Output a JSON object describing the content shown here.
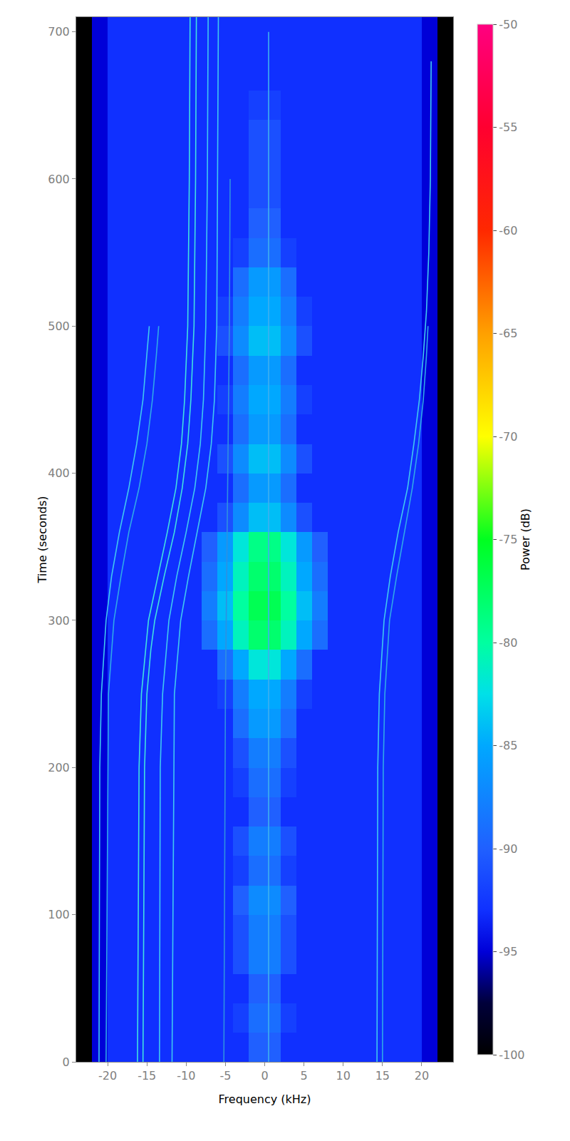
{
  "chart_data": {
    "type": "heatmap",
    "x_label": "Frequency (kHz)",
    "y_label": "Time (seconds)",
    "xlim": [
      -24,
      24
    ],
    "xticks": [
      -20,
      -15,
      -10,
      -5,
      0,
      5,
      10,
      15,
      20
    ],
    "ylim": [
      0,
      710
    ],
    "yticks": [
      0,
      100,
      200,
      300,
      400,
      500,
      600,
      700
    ],
    "grid": true,
    "colorbar": {
      "title": "Power (dB)",
      "range": [
        -100,
        -50
      ],
      "ticks": [
        -100,
        -95,
        -90,
        -85,
        -80,
        -75,
        -70,
        -65,
        -60,
        -55,
        -50
      ]
    },
    "x": [
      -23,
      -21,
      -19,
      -17,
      -15,
      -13,
      -11,
      -9,
      -7,
      -5,
      -3,
      -1,
      1,
      3,
      5,
      7,
      9,
      11,
      13,
      15,
      17,
      19,
      21,
      23
    ],
    "y": [
      10,
      30,
      50,
      70,
      90,
      110,
      130,
      150,
      170,
      190,
      210,
      230,
      250,
      270,
      290,
      310,
      330,
      350,
      370,
      390,
      410,
      430,
      450,
      470,
      490,
      510,
      530,
      550,
      570,
      590,
      610,
      630,
      650,
      670,
      690,
      710
    ],
    "z": [
      [
        -100,
        -95,
        -93,
        -93,
        -93,
        -93,
        -93,
        -93,
        -93,
        -93,
        -93,
        -90,
        -90,
        -93,
        -93,
        -93,
        -93,
        -93,
        -93,
        -93,
        -93,
        -93,
        -95,
        -100
      ],
      [
        -100,
        -95,
        -93,
        -93,
        -93,
        -93,
        -93,
        -93,
        -93,
        -93,
        -92,
        -89,
        -89,
        -92,
        -93,
        -93,
        -93,
        -93,
        -93,
        -93,
        -93,
        -93,
        -95,
        -100
      ],
      [
        -100,
        -95,
        -93,
        -93,
        -93,
        -93,
        -93,
        -93,
        -93,
        -93,
        -93,
        -90,
        -90,
        -93,
        -93,
        -93,
        -93,
        -93,
        -93,
        -93,
        -93,
        -93,
        -95,
        -100
      ],
      [
        -100,
        -95,
        -93,
        -93,
        -93,
        -93,
        -93,
        -93,
        -93,
        -93,
        -91,
        -88,
        -88,
        -91,
        -93,
        -93,
        -93,
        -93,
        -93,
        -93,
        -93,
        -93,
        -95,
        -100
      ],
      [
        -100,
        -95,
        -93,
        -93,
        -93,
        -93,
        -93,
        -93,
        -93,
        -93,
        -91,
        -88,
        -88,
        -91,
        -93,
        -93,
        -93,
        -93,
        -93,
        -93,
        -93,
        -93,
        -95,
        -100
      ],
      [
        -100,
        -95,
        -93,
        -93,
        -93,
        -93,
        -93,
        -93,
        -93,
        -93,
        -90,
        -87,
        -87,
        -90,
        -93,
        -93,
        -93,
        -93,
        -93,
        -93,
        -93,
        -93,
        -95,
        -100
      ],
      [
        -100,
        -95,
        -93,
        -93,
        -93,
        -93,
        -93,
        -93,
        -93,
        -93,
        -92,
        -89,
        -89,
        -92,
        -93,
        -93,
        -93,
        -93,
        -93,
        -93,
        -93,
        -93,
        -95,
        -100
      ],
      [
        -100,
        -95,
        -93,
        -93,
        -93,
        -93,
        -93,
        -93,
        -93,
        -93,
        -91,
        -88,
        -88,
        -91,
        -93,
        -93,
        -93,
        -93,
        -93,
        -93,
        -93,
        -93,
        -95,
        -100
      ],
      [
        -100,
        -95,
        -93,
        -93,
        -93,
        -93,
        -93,
        -93,
        -93,
        -93,
        -93,
        -90,
        -90,
        -93,
        -93,
        -93,
        -93,
        -93,
        -93,
        -93,
        -93,
        -93,
        -95,
        -100
      ],
      [
        -100,
        -95,
        -93,
        -93,
        -93,
        -93,
        -93,
        -93,
        -93,
        -93,
        -92,
        -89,
        -89,
        -92,
        -93,
        -93,
        -93,
        -93,
        -93,
        -93,
        -93,
        -93,
        -95,
        -100
      ],
      [
        -100,
        -95,
        -93,
        -93,
        -93,
        -93,
        -93,
        -93,
        -93,
        -93,
        -91,
        -88,
        -88,
        -91,
        -93,
        -93,
        -93,
        -93,
        -93,
        -93,
        -93,
        -93,
        -95,
        -100
      ],
      [
        -100,
        -95,
        -93,
        -93,
        -93,
        -93,
        -93,
        -93,
        -93,
        -93,
        -89,
        -86,
        -86,
        -89,
        -93,
        -93,
        -93,
        -93,
        -93,
        -93,
        -93,
        -93,
        -95,
        -100
      ],
      [
        -100,
        -95,
        -93,
        -93,
        -93,
        -93,
        -93,
        -93,
        -93,
        -92,
        -88,
        -85,
        -85,
        -88,
        -92,
        -93,
        -93,
        -93,
        -93,
        -93,
        -93,
        -93,
        -95,
        -100
      ],
      [
        -100,
        -95,
        -93,
        -93,
        -93,
        -93,
        -93,
        -93,
        -93,
        -89,
        -85,
        -82,
        -82,
        -85,
        -89,
        -93,
        -93,
        -93,
        -93,
        -93,
        -93,
        -93,
        -95,
        -100
      ],
      [
        -100,
        -95,
        -93,
        -93,
        -93,
        -93,
        -93,
        -93,
        -89,
        -85,
        -81,
        -78,
        -78,
        -81,
        -85,
        -89,
        -93,
        -93,
        -93,
        -93,
        -93,
        -93,
        -95,
        -100
      ],
      [
        -100,
        -95,
        -93,
        -93,
        -93,
        -93,
        -93,
        -93,
        -88,
        -84,
        -80,
        -77,
        -77,
        -80,
        -84,
        -88,
        -93,
        -93,
        -93,
        -93,
        -93,
        -93,
        -95,
        -100
      ],
      [
        -100,
        -95,
        -93,
        -93,
        -93,
        -93,
        -93,
        -93,
        -89,
        -85,
        -81,
        -78,
        -78,
        -81,
        -85,
        -89,
        -93,
        -93,
        -93,
        -93,
        -93,
        -93,
        -95,
        -100
      ],
      [
        -100,
        -95,
        -93,
        -93,
        -93,
        -93,
        -93,
        -93,
        -90,
        -86,
        -82,
        -79,
        -79,
        -82,
        -86,
        -90,
        -93,
        -93,
        -93,
        -93,
        -93,
        -93,
        -95,
        -100
      ],
      [
        -100,
        -95,
        -93,
        -93,
        -93,
        -93,
        -93,
        -93,
        -93,
        -91,
        -87,
        -84,
        -84,
        -87,
        -91,
        -93,
        -93,
        -93,
        -93,
        -93,
        -93,
        -93,
        -95,
        -100
      ],
      [
        -100,
        -95,
        -93,
        -93,
        -93,
        -93,
        -93,
        -93,
        -93,
        -93,
        -89,
        -86,
        -86,
        -89,
        -93,
        -93,
        -93,
        -93,
        -93,
        -93,
        -93,
        -93,
        -95,
        -100
      ],
      [
        -100,
        -95,
        -93,
        -93,
        -93,
        -93,
        -93,
        -93,
        -93,
        -91,
        -87,
        -84,
        -84,
        -87,
        -91,
        -93,
        -93,
        -93,
        -93,
        -93,
        -93,
        -93,
        -95,
        -100
      ],
      [
        -100,
        -95,
        -93,
        -93,
        -93,
        -93,
        -93,
        -93,
        -93,
        -93,
        -89,
        -86,
        -86,
        -89,
        -93,
        -93,
        -93,
        -93,
        -93,
        -93,
        -93,
        -93,
        -95,
        -100
      ],
      [
        -100,
        -95,
        -93,
        -93,
        -93,
        -93,
        -93,
        -93,
        -93,
        -92,
        -88,
        -85,
        -85,
        -88,
        -92,
        -93,
        -93,
        -93,
        -93,
        -93,
        -93,
        -93,
        -95,
        -100
      ],
      [
        -100,
        -95,
        -93,
        -93,
        -93,
        -93,
        -93,
        -93,
        -93,
        -93,
        -89,
        -86,
        -86,
        -89,
        -93,
        -93,
        -93,
        -93,
        -93,
        -93,
        -93,
        -93,
        -95,
        -100
      ],
      [
        -100,
        -95,
        -93,
        -93,
        -93,
        -93,
        -93,
        -93,
        -93,
        -91,
        -87,
        -84,
        -84,
        -87,
        -91,
        -93,
        -93,
        -93,
        -93,
        -93,
        -93,
        -93,
        -95,
        -100
      ],
      [
        -100,
        -95,
        -93,
        -93,
        -93,
        -93,
        -93,
        -93,
        -93,
        -92,
        -88,
        -85,
        -85,
        -88,
        -92,
        -93,
        -93,
        -93,
        -93,
        -93,
        -93,
        -93,
        -95,
        -100
      ],
      [
        -100,
        -95,
        -93,
        -93,
        -93,
        -93,
        -93,
        -93,
        -93,
        -93,
        -89,
        -86,
        -86,
        -89,
        -93,
        -93,
        -93,
        -93,
        -93,
        -93,
        -93,
        -93,
        -95,
        -100
      ],
      [
        -100,
        -95,
        -93,
        -93,
        -93,
        -93,
        -93,
        -93,
        -93,
        -93,
        -92,
        -89,
        -89,
        -92,
        -93,
        -93,
        -93,
        -93,
        -93,
        -93,
        -93,
        -93,
        -95,
        -100
      ],
      [
        -100,
        -95,
        -93,
        -93,
        -93,
        -93,
        -93,
        -93,
        -93,
        -93,
        -93,
        -90,
        -90,
        -93,
        -93,
        -93,
        -93,
        -93,
        -93,
        -93,
        -93,
        -93,
        -95,
        -100
      ],
      [
        -100,
        -95,
        -93,
        -93,
        -93,
        -93,
        -93,
        -93,
        -93,
        -93,
        -93,
        -91,
        -91,
        -93,
        -93,
        -93,
        -93,
        -93,
        -93,
        -93,
        -93,
        -93,
        -95,
        -100
      ],
      [
        -100,
        -95,
        -93,
        -93,
        -93,
        -93,
        -93,
        -93,
        -93,
        -93,
        -93,
        -91,
        -91,
        -93,
        -93,
        -93,
        -93,
        -93,
        -93,
        -93,
        -93,
        -93,
        -95,
        -100
      ],
      [
        -100,
        -95,
        -93,
        -93,
        -93,
        -93,
        -93,
        -93,
        -93,
        -93,
        -93,
        -91,
        -91,
        -93,
        -93,
        -93,
        -93,
        -93,
        -93,
        -93,
        -93,
        -93,
        -95,
        -100
      ],
      [
        -100,
        -95,
        -93,
        -93,
        -93,
        -93,
        -93,
        -93,
        -93,
        -93,
        -93,
        -92,
        -92,
        -93,
        -93,
        -93,
        -93,
        -93,
        -93,
        -93,
        -93,
        -93,
        -95,
        -100
      ],
      [
        -100,
        -95,
        -93,
        -93,
        -93,
        -93,
        -93,
        -93,
        -93,
        -93,
        -93,
        -93,
        -93,
        -93,
        -93,
        -93,
        -93,
        -93,
        -93,
        -93,
        -93,
        -93,
        -95,
        -100
      ],
      [
        -100,
        -95,
        -93,
        -93,
        -93,
        -93,
        -93,
        -93,
        -93,
        -93,
        -93,
        -93,
        -93,
        -93,
        -93,
        -93,
        -93,
        -93,
        -93,
        -93,
        -93,
        -93,
        -95,
        -100
      ],
      [
        -100,
        -95,
        -93,
        -93,
        -93,
        -93,
        -93,
        -93,
        -93,
        -93,
        -93,
        -93,
        -93,
        -93,
        -93,
        -93,
        -93,
        -93,
        -93,
        -93,
        -93,
        -93,
        -95,
        -100
      ]
    ],
    "series": [
      {
        "type": "line",
        "color": "#3fc8f0",
        "x": [
          -21.1,
          -21.0,
          -20.8,
          -20.2,
          -19.5,
          -18.5,
          -17.3,
          -16.3,
          -15.5,
          -15.0,
          -14.7
        ],
        "y": [
          0,
          200,
          250,
          300,
          330,
          360,
          390,
          420,
          450,
          480,
          500
        ]
      },
      {
        "type": "line",
        "color": "#2fa8e8",
        "x": [
          -20.2,
          -19.9,
          -19.2,
          -18.3,
          -17.3,
          -16.0,
          -15.0,
          -14.3,
          -13.8,
          -13.5
        ],
        "y": [
          0,
          250,
          300,
          330,
          360,
          390,
          420,
          450,
          480,
          500
        ]
      },
      {
        "type": "line",
        "color": "#40e0e0",
        "x": [
          -16.2,
          -16.0,
          -15.7,
          -14.8,
          -13.6,
          -12.4,
          -11.3,
          -10.6,
          -10.2,
          -9.8,
          -9.6,
          -9.5
        ],
        "y": [
          0,
          200,
          250,
          300,
          330,
          360,
          390,
          420,
          450,
          500,
          600,
          710
        ]
      },
      {
        "type": "line",
        "color": "#40e0e0",
        "x": [
          -15.5,
          -15.3,
          -15.0,
          -14.5,
          -14.0,
          -12.8,
          -11.5,
          -10.5,
          -9.8,
          -9.4,
          -9.0,
          -8.9,
          -8.8,
          -8.7
        ],
        "y": [
          0,
          200,
          250,
          280,
          300,
          330,
          360,
          390,
          420,
          450,
          500,
          550,
          600,
          710
        ]
      },
      {
        "type": "line",
        "color": "#3fc8f0",
        "x": [
          -13.4,
          -13.3,
          -13.0,
          -12.2,
          -11.2,
          -10.0,
          -8.9,
          -8.2,
          -7.8,
          -7.5,
          -7.3,
          -7.2
        ],
        "y": [
          0,
          200,
          250,
          300,
          330,
          360,
          390,
          420,
          450,
          500,
          600,
          710
        ]
      },
      {
        "type": "line",
        "color": "#3fc8f0",
        "x": [
          -11.8,
          -11.5,
          -10.7,
          -9.7,
          -8.6,
          -7.5,
          -6.8,
          -6.4,
          -6.1,
          -6.0,
          -5.9
        ],
        "y": [
          0,
          250,
          300,
          330,
          360,
          390,
          420,
          450,
          500,
          600,
          710
        ]
      },
      {
        "type": "line",
        "color": "#2f90e0",
        "x": [
          -5.2,
          -5.0,
          -4.8,
          -4.5,
          -4.4
        ],
        "y": [
          0,
          250,
          350,
          500,
          600
        ]
      },
      {
        "type": "line",
        "color": "#3fb0f0",
        "x": [
          0.5,
          0.5
        ],
        "y": [
          0,
          700
        ]
      },
      {
        "type": "line",
        "color": "#3fc8f0",
        "x": [
          14.3,
          14.4,
          14.6,
          15.2,
          16.0,
          17.0,
          18.2,
          19.0,
          19.7,
          20.2,
          20.6,
          20.9,
          21.1,
          21.2
        ],
        "y": [
          0,
          200,
          250,
          300,
          330,
          360,
          390,
          420,
          450,
          480,
          510,
          550,
          600,
          680
        ]
      },
      {
        "type": "line",
        "color": "#2fa8e8",
        "x": [
          15.0,
          15.1,
          15.3,
          15.9,
          16.8,
          17.8,
          18.8,
          19.6,
          20.2,
          20.6,
          20.8
        ],
        "y": [
          0,
          200,
          250,
          300,
          330,
          360,
          390,
          420,
          450,
          480,
          500
        ]
      }
    ]
  }
}
